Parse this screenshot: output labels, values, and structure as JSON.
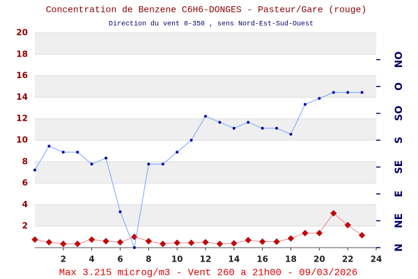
{
  "chart_data": {
    "type": "line",
    "title": "Concentration de Benzene C6H6-DONGES - Pasteur/Gare (rouge)",
    "subtitle": "Direction du vent 0-350 , sens Nord-Est-Sud-Ouest",
    "footer": "Max 3.215 microg/m3 - Vent 260  a 21h00 - 09/03/2026",
    "x": [
      0,
      1,
      2,
      3,
      4,
      5,
      6,
      7,
      8,
      9,
      10,
      11,
      12,
      13,
      14,
      15,
      16,
      17,
      18,
      19,
      20,
      21,
      22,
      23
    ],
    "xlim": [
      0,
      24
    ],
    "xticks": [
      2,
      4,
      6,
      8,
      10,
      12,
      14,
      16,
      18,
      20,
      22,
      24
    ],
    "ylim": [
      0,
      20
    ],
    "yticks": [
      2,
      4,
      6,
      8,
      10,
      12,
      14,
      16,
      18,
      20
    ],
    "y2lim": [
      0,
      360
    ],
    "y2ticks": [
      {
        "value": 0,
        "label": "N"
      },
      {
        "value": 45,
        "label": "NE"
      },
      {
        "value": 90,
        "label": "E"
      },
      {
        "value": 135,
        "label": "SE"
      },
      {
        "value": 180,
        "label": "S"
      },
      {
        "value": 225,
        "label": "SO"
      },
      {
        "value": 270,
        "label": "O"
      },
      {
        "value": 315,
        "label": "NO"
      }
    ],
    "series": [
      {
        "color": "#cc0000",
        "line_color": "#f08090",
        "values": [
          0.75,
          0.5,
          0.35,
          0.35,
          0.75,
          0.6,
          0.5,
          1.0,
          0.6,
          0.35,
          0.45,
          0.45,
          0.5,
          0.35,
          0.4,
          0.7,
          0.55,
          0.55,
          0.85,
          1.35,
          1.35,
          3.2,
          2.1,
          1.15
        ]
      },
      {
        "color": "#0000aa",
        "line_color": "#6fa8ff",
        "axis": "y2",
        "values": [
          130,
          170,
          160,
          160,
          140,
          150,
          60,
          0,
          140,
          140,
          160,
          180,
          220,
          210,
          200,
          210,
          200,
          200,
          190,
          240,
          250,
          260,
          260,
          260
        ]
      }
    ],
    "banded_background": true
  }
}
